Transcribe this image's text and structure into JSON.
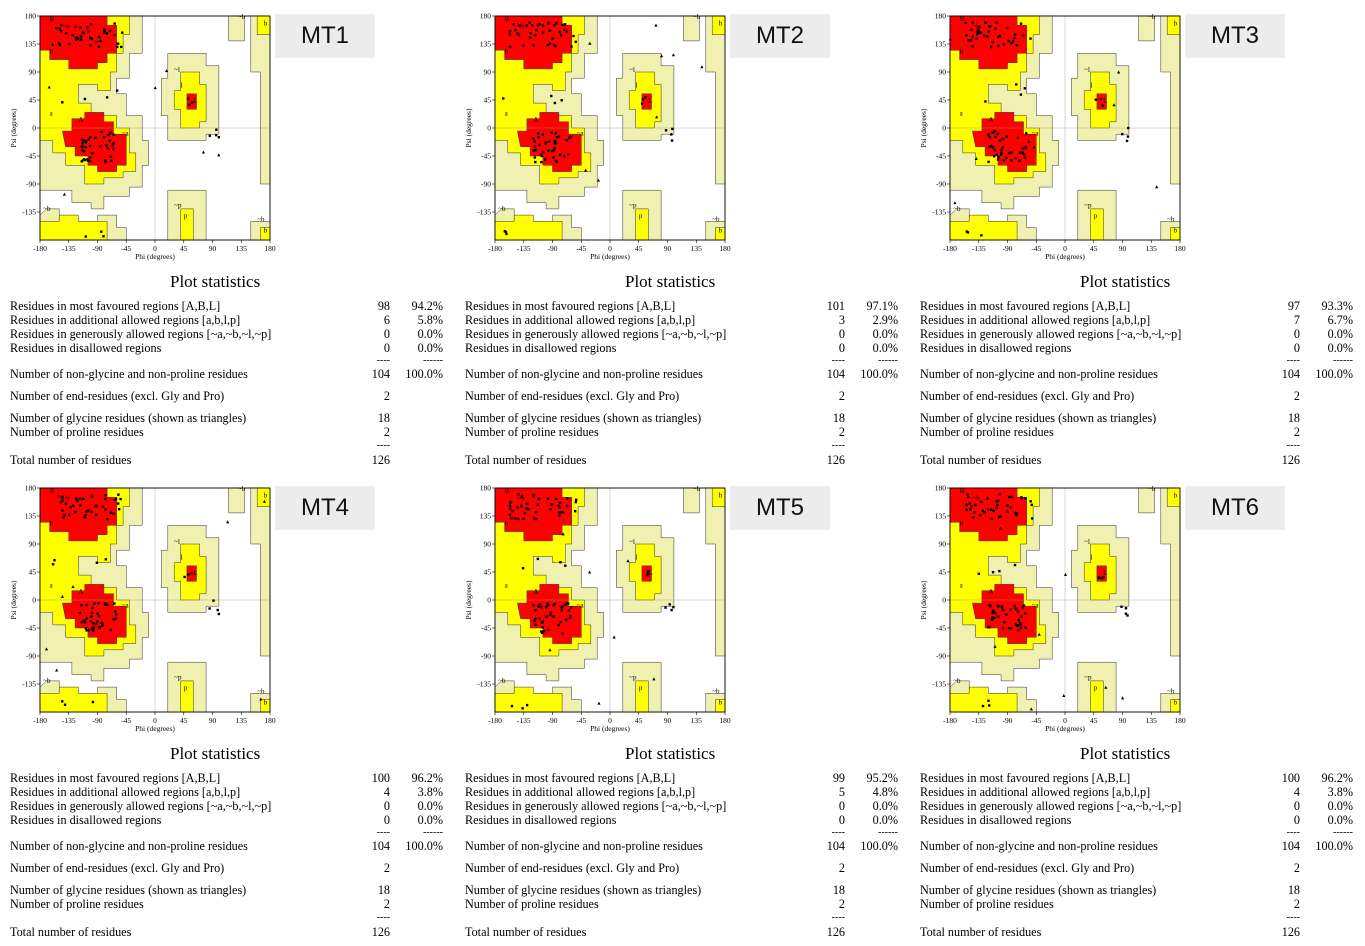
{
  "axes": {
    "xlabel": "Phi (degrees)",
    "ylabel": "Psi (degrees)",
    "xticks": [
      "-180",
      "-135",
      "-90",
      "-45",
      "0",
      "45",
      "90",
      "135",
      "180"
    ],
    "yticks": [
      "180",
      "135",
      "90",
      "45",
      "0",
      "-45",
      "-90",
      "-135"
    ],
    "xlim": [
      -180,
      180
    ],
    "ylim": [
      -180,
      180
    ]
  },
  "region_letters": [
    "A",
    "B",
    "L",
    "a",
    "b",
    "l",
    "p",
    "~a",
    "~b",
    "~l",
    "~p"
  ],
  "colors": {
    "most_favoured": "#ff0000",
    "additional_allowed": "#ffff00",
    "generously_allowed": "#f0f0b0",
    "disallowed": "#ffffff",
    "residue_marker": "#000000"
  },
  "stats_title": "Plot statistics",
  "row_labels": {
    "most": "Residues in most favoured regions  [A,B,L]",
    "additional": "Residues in additional allowed regions  [a,b,l,p]",
    "generous": "Residues in generously allowed regions  [~a,~b,~l,~p]",
    "disallowed": "Residues in disallowed regions",
    "nongly": "Number of non-glycine and non-proline residues",
    "end": "Number of end-residues (excl. Gly and Pro)",
    "gly": "Number of glycine residues (shown as triangles)",
    "pro": "Number of proline residues",
    "total": "Total number of residues"
  },
  "dash_short": "----",
  "dash_long": "------",
  "chart_data": [
    {
      "type": "scatter",
      "name": "MT1",
      "counts": {
        "most": "98",
        "additional": "6",
        "generous": "0",
        "disallowed": "0",
        "nongly": "104",
        "end": "2",
        "gly": "18",
        "pro": "2",
        "total": "126"
      },
      "percents": {
        "most": "94.2%",
        "additional": "5.8%",
        "generous": "0.0%",
        "disallowed": "0.0%",
        "nongly": "100.0%"
      }
    },
    {
      "type": "scatter",
      "name": "MT2",
      "counts": {
        "most": "101",
        "additional": "3",
        "generous": "0",
        "disallowed": "0",
        "nongly": "104",
        "end": "2",
        "gly": "18",
        "pro": "2",
        "total": "126"
      },
      "percents": {
        "most": "97.1%",
        "additional": "2.9%",
        "generous": "0.0%",
        "disallowed": "0.0%",
        "nongly": "100.0%"
      }
    },
    {
      "type": "scatter",
      "name": "MT3",
      "counts": {
        "most": "97",
        "additional": "7",
        "generous": "0",
        "disallowed": "0",
        "nongly": "104",
        "end": "2",
        "gly": "18",
        "pro": "2",
        "total": "126"
      },
      "percents": {
        "most": "93.3%",
        "additional": "6.7%",
        "generous": "0.0%",
        "disallowed": "0.0%",
        "nongly": "100.0%"
      }
    },
    {
      "type": "scatter",
      "name": "MT4",
      "counts": {
        "most": "100",
        "additional": "4",
        "generous": "0",
        "disallowed": "0",
        "nongly": "104",
        "end": "2",
        "gly": "18",
        "pro": "2",
        "total": "126"
      },
      "percents": {
        "most": "96.2%",
        "additional": "3.8%",
        "generous": "0.0%",
        "disallowed": "0.0%",
        "nongly": "100.0%"
      }
    },
    {
      "type": "scatter",
      "name": "MT5",
      "counts": {
        "most": "99",
        "additional": "5",
        "generous": "0",
        "disallowed": "0",
        "nongly": "104",
        "end": "2",
        "gly": "18",
        "pro": "2",
        "total": "126"
      },
      "percents": {
        "most": "95.2%",
        "additional": "4.8%",
        "generous": "0.0%",
        "disallowed": "0.0%",
        "nongly": "100.0%"
      }
    },
    {
      "type": "scatter",
      "name": "MT6",
      "counts": {
        "most": "100",
        "additional": "4",
        "generous": "0",
        "disallowed": "0",
        "nongly": "104",
        "end": "2",
        "gly": "18",
        "pro": "2",
        "total": "126"
      },
      "percents": {
        "most": "96.2%",
        "additional": "3.8%",
        "generous": "0.0%",
        "disallowed": "0.0%",
        "nongly": "100.0%"
      }
    }
  ]
}
